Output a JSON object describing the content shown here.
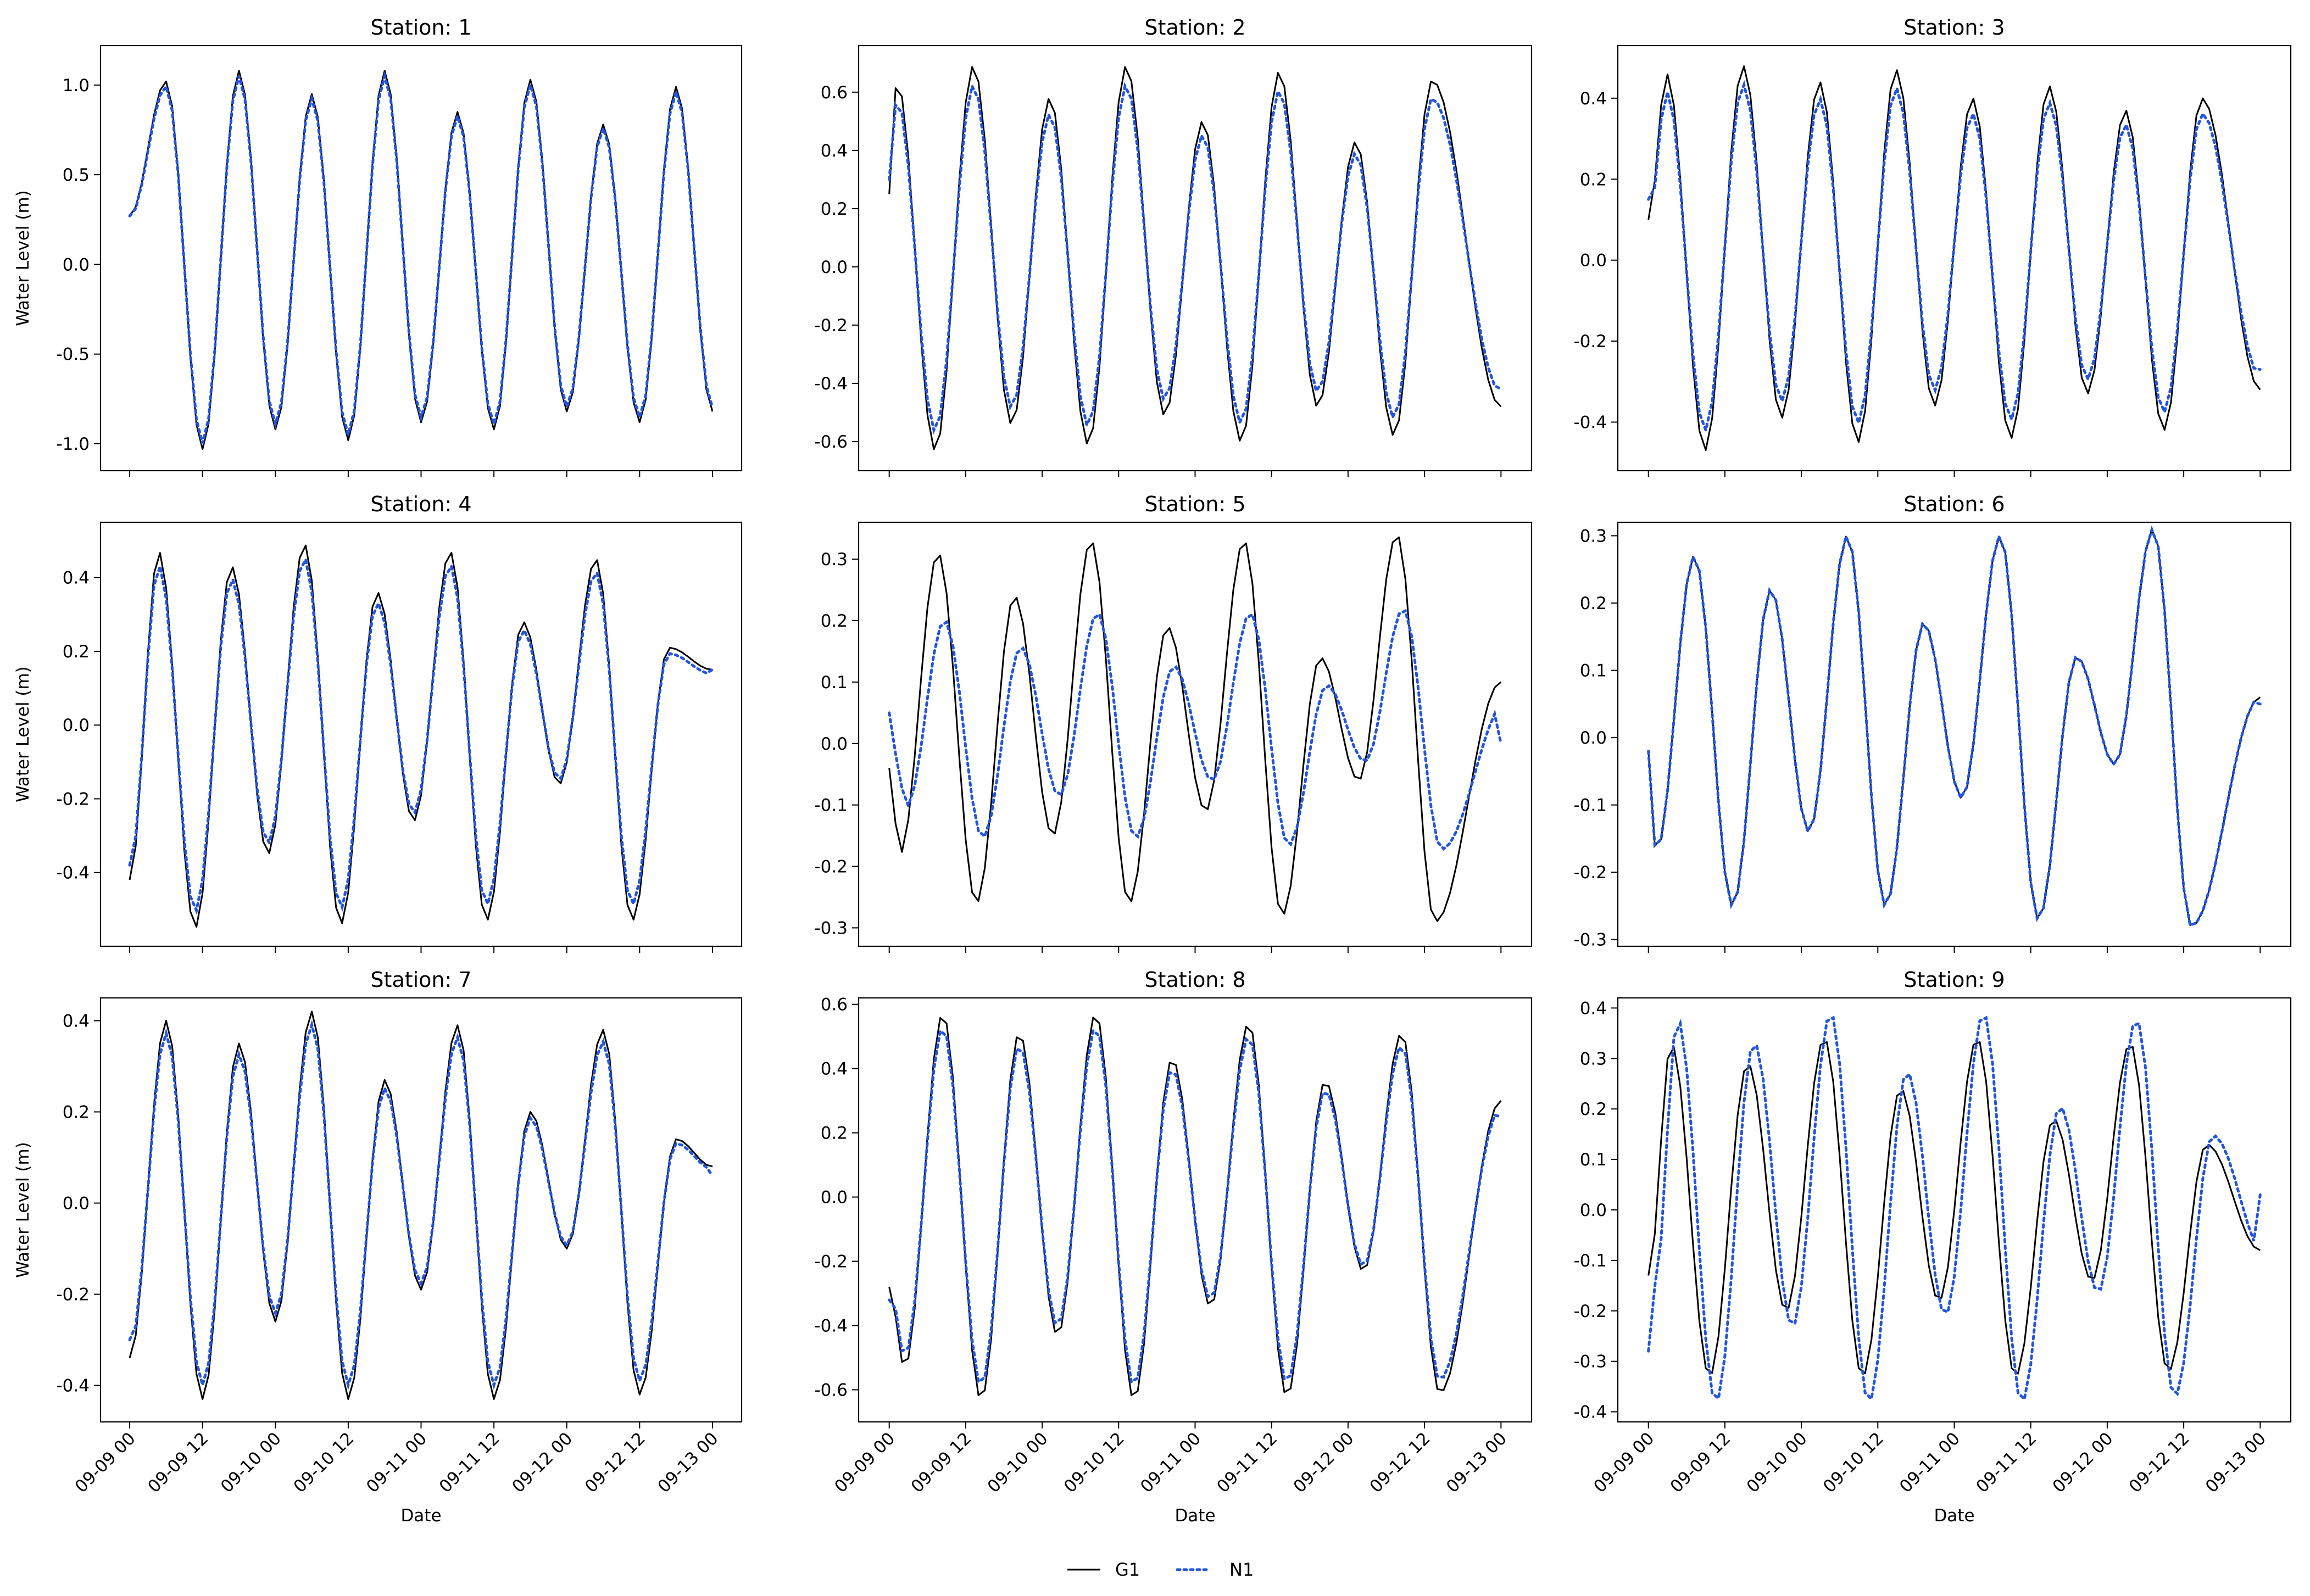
{
  "legend": {
    "placement": "bottom-center",
    "entries": [
      {
        "label": "G1",
        "color": "#000000",
        "style": "solid"
      },
      {
        "label": "N1",
        "color": "#2255dd",
        "style": "dotted"
      }
    ]
  },
  "x_axis": {
    "label": "Date",
    "ticks": [
      "09-09 00",
      "09-09 12",
      "09-10 00",
      "09-10 12",
      "09-11 00",
      "09-11 12",
      "09-12 00",
      "09-12 12",
      "09-13 00"
    ]
  },
  "y_axis_label": "Water Level (m)",
  "chart_data": [
    {
      "type": "line",
      "title": "Station: 1",
      "ylim": [
        -1.15,
        1.22
      ],
      "yticks": [
        -1.0,
        -0.5,
        0.0,
        0.5,
        1.0
      ],
      "grid": false,
      "series": [
        {
          "name": "G1",
          "x_days": [
            0,
            0.5,
            1,
            1.5,
            2,
            2.5,
            3,
            3.5,
            4
          ],
          "peaks": [
            [
              0.25,
              1.02
            ],
            [
              0.75,
              1.08
            ],
            [
              1.25,
              0.95
            ],
            [
              1.75,
              1.08
            ],
            [
              2.25,
              0.85
            ],
            [
              2.75,
              1.03
            ],
            [
              3.25,
              0.78
            ],
            [
              3.75,
              0.99
            ]
          ],
          "troughs": [
            [
              0.5,
              -1.03
            ],
            [
              1.0,
              -0.92
            ],
            [
              1.5,
              -0.98
            ],
            [
              2.0,
              -0.88
            ],
            [
              2.5,
              -0.92
            ],
            [
              3.0,
              -0.82
            ],
            [
              3.5,
              -0.88
            ],
            [
              4.0,
              -0.82
            ]
          ],
          "start": 0.27,
          "end": -0.82
        },
        {
          "name": "N1",
          "start": 0.27,
          "end": -0.8
        }
      ]
    },
    {
      "type": "line",
      "title": "Station: 2",
      "ylim": [
        -0.7,
        0.76
      ],
      "yticks": [
        -0.6,
        -0.4,
        -0.2,
        0.0,
        0.2,
        0.4,
        0.6
      ],
      "grid": false,
      "series": [
        {
          "name": "G1",
          "peaks": [
            [
              0.05,
              0.64
            ],
            [
              0.55,
              0.69
            ],
            [
              1.05,
              0.58
            ],
            [
              1.55,
              0.69
            ],
            [
              2.05,
              0.5
            ],
            [
              2.55,
              0.67
            ],
            [
              3.05,
              0.43
            ],
            [
              3.55,
              0.64
            ]
          ],
          "troughs": [
            [
              0.3,
              -0.63
            ],
            [
              0.8,
              -0.54
            ],
            [
              1.3,
              -0.61
            ],
            [
              1.8,
              -0.51
            ],
            [
              2.3,
              -0.6
            ],
            [
              2.8,
              -0.48
            ],
            [
              3.3,
              -0.58
            ],
            [
              4.0,
              -0.48
            ]
          ],
          "start": 0.25,
          "end": -0.48
        },
        {
          "name": "N1",
          "amp_scale": 0.9,
          "start": 0.3,
          "end": -0.42
        }
      ]
    },
    {
      "type": "line",
      "title": "Station: 3",
      "ylim": [
        -0.52,
        0.53
      ],
      "yticks": [
        -0.4,
        -0.2,
        0.0,
        0.2,
        0.4
      ],
      "grid": false,
      "series": [
        {
          "name": "G1",
          "peaks": [
            [
              0.12,
              0.46
            ],
            [
              0.62,
              0.48
            ],
            [
              1.12,
              0.44
            ],
            [
              1.62,
              0.47
            ],
            [
              2.12,
              0.4
            ],
            [
              2.62,
              0.43
            ],
            [
              3.12,
              0.37
            ],
            [
              3.62,
              0.4
            ]
          ],
          "troughs": [
            [
              0.37,
              -0.47
            ],
            [
              0.87,
              -0.39
            ],
            [
              1.37,
              -0.45
            ],
            [
              1.87,
              -0.36
            ],
            [
              2.37,
              -0.44
            ],
            [
              2.87,
              -0.33
            ],
            [
              3.37,
              -0.42
            ],
            [
              4.0,
              -0.32
            ]
          ],
          "start": 0.1,
          "end": -0.32
        },
        {
          "name": "N1",
          "amp_scale": 0.9,
          "start": 0.15,
          "end": -0.27
        }
      ]
    },
    {
      "type": "line",
      "title": "Station: 4",
      "ylim": [
        -0.6,
        0.55
      ],
      "yticks": [
        -0.4,
        -0.2,
        0.0,
        0.2,
        0.4
      ],
      "grid": false,
      "series": [
        {
          "name": "G1",
          "peaks": [
            [
              0.2,
              0.47
            ],
            [
              0.7,
              0.43
            ],
            [
              1.2,
              0.49
            ],
            [
              1.7,
              0.36
            ],
            [
              2.2,
              0.47
            ],
            [
              2.7,
              0.28
            ],
            [
              3.2,
              0.45
            ],
            [
              3.7,
              0.21
            ]
          ],
          "troughs": [
            [
              0.0,
              -0.42
            ],
            [
              0.45,
              -0.55
            ],
            [
              0.95,
              -0.35
            ],
            [
              1.45,
              -0.54
            ],
            [
              1.95,
              -0.26
            ],
            [
              2.45,
              -0.53
            ],
            [
              2.95,
              -0.16
            ],
            [
              3.45,
              -0.53
            ]
          ],
          "start": -0.42,
          "end": 0.15
        },
        {
          "name": "N1",
          "amp_scale": 0.92,
          "start": -0.38,
          "end": 0.15
        }
      ]
    },
    {
      "type": "line",
      "title": "Station: 5",
      "ylim": [
        -0.33,
        0.36
      ],
      "yticks": [
        -0.3,
        -0.2,
        -0.1,
        0.0,
        0.1,
        0.2,
        0.3
      ],
      "grid": false,
      "series": [
        {
          "name": "G1",
          "peaks": [
            [
              0.32,
              0.31
            ],
            [
              0.82,
              0.24
            ],
            [
              1.32,
              0.33
            ],
            [
              1.82,
              0.19
            ],
            [
              2.32,
              0.33
            ],
            [
              2.82,
              0.14
            ],
            [
              3.32,
              0.34
            ],
            [
              4.0,
              0.1
            ]
          ],
          "troughs": [
            [
              0.07,
              -0.18
            ],
            [
              0.57,
              -0.26
            ],
            [
              1.07,
              -0.15
            ],
            [
              1.57,
              -0.26
            ],
            [
              2.07,
              -0.11
            ],
            [
              2.57,
              -0.28
            ],
            [
              3.07,
              -0.06
            ],
            [
              3.57,
              -0.29
            ]
          ],
          "start": -0.04,
          "end": 0.1
        },
        {
          "name": "N1",
          "phase_lag": 0.06,
          "amp_scale": 0.62,
          "start": 0.05,
          "end": 0.0
        }
      ]
    },
    {
      "type": "line",
      "title": "Station: 6",
      "ylim": [
        -0.31,
        0.32
      ],
      "yticks": [
        -0.3,
        -0.2,
        -0.1,
        0.0,
        0.1,
        0.2,
        0.3
      ],
      "grid": false,
      "series": [
        {
          "name": "G1",
          "peaks": [
            [
              0.3,
              0.27
            ],
            [
              0.8,
              0.22
            ],
            [
              1.3,
              0.3
            ],
            [
              1.8,
              0.17
            ],
            [
              2.3,
              0.3
            ],
            [
              2.8,
              0.12
            ],
            [
              3.3,
              0.31
            ],
            [
              4.0,
              0.06
            ]
          ],
          "troughs": [
            [
              0.05,
              -0.17
            ],
            [
              0.55,
              -0.25
            ],
            [
              1.05,
              -0.14
            ],
            [
              1.55,
              -0.25
            ],
            [
              2.05,
              -0.09
            ],
            [
              2.55,
              -0.27
            ],
            [
              3.05,
              -0.04
            ],
            [
              3.55,
              -0.28
            ]
          ],
          "start": -0.02,
          "end": 0.06
        },
        {
          "name": "N1",
          "amp_scale": 1.0,
          "start": -0.02,
          "end": 0.05
        }
      ]
    },
    {
      "type": "line",
      "title": "Station: 7",
      "ylim": [
        -0.48,
        0.45
      ],
      "yticks": [
        -0.4,
        -0.2,
        0.0,
        0.2,
        0.4
      ],
      "grid": false,
      "series": [
        {
          "name": "G1",
          "peaks": [
            [
              0.25,
              0.4
            ],
            [
              0.75,
              0.35
            ],
            [
              1.25,
              0.42
            ],
            [
              1.75,
              0.27
            ],
            [
              2.25,
              0.39
            ],
            [
              2.75,
              0.2
            ],
            [
              3.25,
              0.38
            ],
            [
              3.75,
              0.14
            ]
          ],
          "troughs": [
            [
              0.0,
              -0.34
            ],
            [
              0.5,
              -0.43
            ],
            [
              1.0,
              -0.26
            ],
            [
              1.5,
              -0.43
            ],
            [
              2.0,
              -0.19
            ],
            [
              2.5,
              -0.43
            ],
            [
              3.0,
              -0.1
            ],
            [
              3.5,
              -0.42
            ]
          ],
          "start": -0.34,
          "end": 0.08
        },
        {
          "name": "N1",
          "amp_scale": 0.93,
          "start": -0.3,
          "end": 0.06
        }
      ]
    },
    {
      "type": "line",
      "title": "Station: 8",
      "ylim": [
        -0.7,
        0.62
      ],
      "yticks": [
        -0.6,
        -0.4,
        -0.2,
        0.0,
        0.2,
        0.4,
        0.6
      ],
      "grid": false,
      "series": [
        {
          "name": "G1",
          "peaks": [
            [
              0.35,
              0.57
            ],
            [
              0.85,
              0.51
            ],
            [
              1.35,
              0.57
            ],
            [
              1.85,
              0.43
            ],
            [
              2.35,
              0.54
            ],
            [
              2.85,
              0.36
            ],
            [
              3.35,
              0.51
            ],
            [
              4.0,
              0.3
            ]
          ],
          "troughs": [
            [
              0.1,
              -0.53
            ],
            [
              0.6,
              -0.63
            ],
            [
              1.1,
              -0.43
            ],
            [
              1.6,
              -0.63
            ],
            [
              2.1,
              -0.34
            ],
            [
              2.6,
              -0.62
            ],
            [
              3.1,
              -0.23
            ],
            [
              3.6,
              -0.61
            ]
          ],
          "start": -0.28,
          "end": 0.3
        },
        {
          "name": "N1",
          "amp_scale": 0.93,
          "start": -0.32,
          "end": 0.25
        }
      ]
    },
    {
      "type": "line",
      "title": "Station: 9",
      "ylim": [
        -0.42,
        0.42
      ],
      "yticks": [
        -0.4,
        -0.3,
        -0.2,
        -0.1,
        0.0,
        0.1,
        0.2,
        0.3,
        0.4
      ],
      "grid": false,
      "series": [
        {
          "name": "G1",
          "peaks": [
            [
              0.15,
              0.33
            ],
            [
              0.65,
              0.29
            ],
            [
              1.15,
              0.34
            ],
            [
              1.65,
              0.24
            ],
            [
              2.15,
              0.34
            ],
            [
              2.65,
              0.18
            ],
            [
              3.15,
              0.33
            ],
            [
              3.65,
              0.13
            ]
          ],
          "troughs": [
            [
              0.4,
              -0.33
            ],
            [
              0.9,
              -0.2
            ],
            [
              1.4,
              -0.33
            ],
            [
              1.9,
              -0.18
            ],
            [
              2.4,
              -0.33
            ],
            [
              2.9,
              -0.14
            ],
            [
              3.4,
              -0.32
            ],
            [
              4.0,
              -0.08
            ]
          ],
          "start": -0.13,
          "end": -0.08
        },
        {
          "name": "N1",
          "phase_lag": 0.04,
          "amp_scale": 1.15,
          "start": -0.28,
          "end": 0.03
        }
      ]
    }
  ]
}
